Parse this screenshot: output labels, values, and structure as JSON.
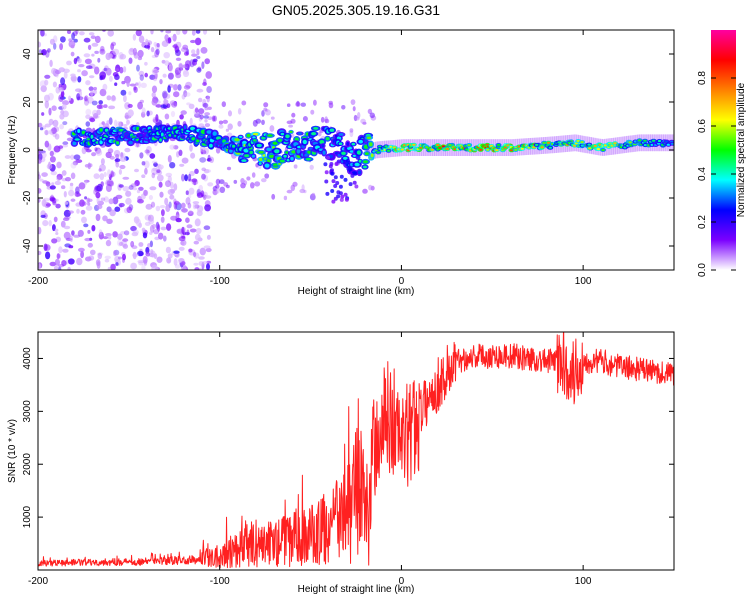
{
  "title": "GN05.2025.305.19.16.G31",
  "chart_data": [
    {
      "type": "heatmap",
      "xlabel": "Height of straight line (km)",
      "ylabel": "Frequency (Hz)",
      "xlim": [
        -200,
        150
      ],
      "ylim": [
        -50,
        50
      ],
      "xticks": [
        -200,
        -100,
        0,
        100
      ],
      "yticks": [
        -40,
        -20,
        0,
        20,
        40
      ],
      "colorbar": {
        "label": "Normalized spectral amplitude",
        "range": [
          0,
          1
        ],
        "ticks": [
          0.0,
          0.2,
          0.4,
          0.6,
          0.8
        ],
        "colors": [
          "#ffffff",
          "#7b00ff",
          "#0000ff",
          "#00ffff",
          "#00ff00",
          "#ffff00",
          "#ff8000",
          "#ff0000",
          "#ff00a0"
        ]
      },
      "ridge": [
        {
          "x": -175,
          "f": 5,
          "amp": 0.5
        },
        {
          "x": -150,
          "f": 6,
          "amp": 0.5
        },
        {
          "x": -120,
          "f": 7,
          "amp": 0.45
        },
        {
          "x": -100,
          "f": 4,
          "amp": 0.5
        },
        {
          "x": -85,
          "f": 0,
          "amp": 0.6
        },
        {
          "x": -70,
          "f": 0,
          "amp": 0.55
        },
        {
          "x": -55,
          "f": 2,
          "amp": 0.5
        },
        {
          "x": -40,
          "f": 3,
          "amp": 0.45
        },
        {
          "x": -25,
          "f": -3,
          "amp": 0.4
        },
        {
          "x": -15,
          "f": 0,
          "amp": 0.6
        },
        {
          "x": 0,
          "f": 1,
          "amp": 0.8
        },
        {
          "x": 30,
          "f": 1,
          "amp": 0.85
        },
        {
          "x": 60,
          "f": 1,
          "amp": 0.85
        },
        {
          "x": 80,
          "f": 2,
          "amp": 0.75
        },
        {
          "x": 95,
          "f": 3,
          "amp": 0.7
        },
        {
          "x": 110,
          "f": 1,
          "amp": 0.75
        },
        {
          "x": 130,
          "f": 3,
          "amp": 0.55
        },
        {
          "x": 150,
          "f": 3,
          "amp": 0.5
        }
      ]
    },
    {
      "type": "line",
      "xlabel": "Height of straight line (km)",
      "ylabel": "SNR (10 * v/v)",
      "xlim": [
        -200,
        150
      ],
      "ylim": [
        0,
        4500
      ],
      "xticks": [
        -200,
        -100,
        0,
        100
      ],
      "yticks": [
        1000,
        2000,
        3000,
        4000
      ],
      "color": "#ff2020",
      "series": [
        {
          "name": "SNR",
          "x": [
            -200,
            -180,
            -160,
            -140,
            -120,
            -110,
            -100,
            -90,
            -80,
            -70,
            -60,
            -50,
            -40,
            -30,
            -25,
            -20,
            -18,
            -15,
            -10,
            -5,
            0,
            5,
            10,
            20,
            30,
            40,
            50,
            60,
            70,
            80,
            90,
            95,
            100,
            110,
            120,
            130,
            140,
            150
          ],
          "y": [
            130,
            140,
            150,
            160,
            180,
            200,
            300,
            420,
            500,
            500,
            600,
            650,
            800,
            1000,
            1500,
            1300,
            900,
            2100,
            2800,
            2900,
            2400,
            2600,
            3000,
            3500,
            3950,
            4050,
            4050,
            4050,
            4000,
            3950,
            3950,
            3700,
            3950,
            3950,
            3850,
            3800,
            3750,
            3700
          ]
        }
      ]
    }
  ]
}
